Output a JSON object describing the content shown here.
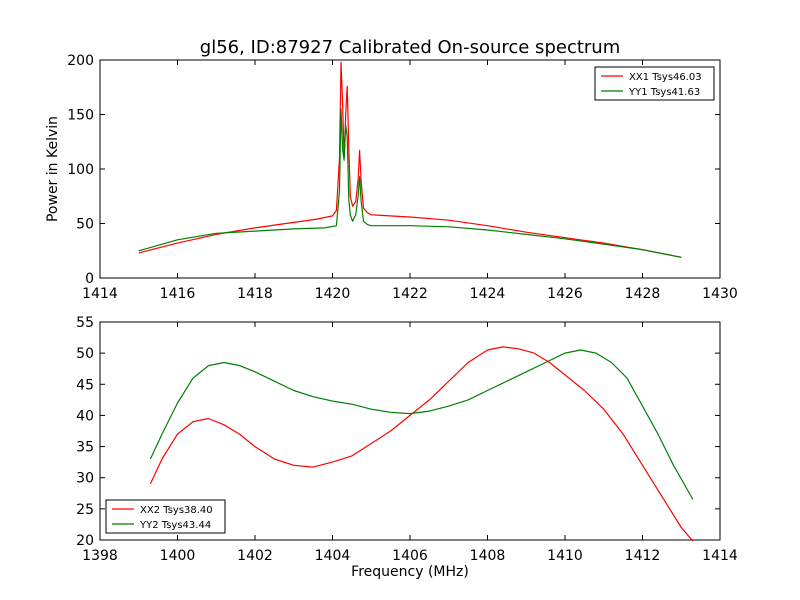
{
  "chart_data": [
    {
      "type": "line",
      "title": "gl56, ID:87927 Calibrated On-source spectrum",
      "xlabel": "",
      "ylabel": "Power in Kelvin",
      "xlim": [
        1414,
        1430
      ],
      "ylim": [
        0,
        200
      ],
      "xticks": [
        "1414",
        "1416",
        "1418",
        "1420",
        "1422",
        "1424",
        "1426",
        "1428",
        "1430"
      ],
      "yticks": [
        "0",
        "50",
        "100",
        "150",
        "200"
      ],
      "legend_position": "top-right",
      "series": [
        {
          "name": "XX1 Tsys46.03",
          "color": "#ff0000",
          "x": [
            1415.0,
            1416.0,
            1417.0,
            1418.0,
            1419.0,
            1419.6,
            1420.0,
            1420.1,
            1420.18,
            1420.22,
            1420.26,
            1420.3,
            1420.34,
            1420.38,
            1420.42,
            1420.46,
            1420.52,
            1420.6,
            1420.66,
            1420.7,
            1420.74,
            1420.8,
            1420.9,
            1421.0,
            1422.0,
            1423.0,
            1424.0,
            1425.0,
            1426.0,
            1427.0,
            1428.0,
            1429.0
          ],
          "y": [
            23,
            32,
            40,
            46,
            51,
            54,
            57,
            62,
            110,
            198,
            160,
            110,
            150,
            176,
            120,
            75,
            66,
            70,
            90,
            117,
            88,
            64,
            60,
            58,
            56,
            53,
            48,
            42,
            37,
            32,
            26,
            19
          ]
        },
        {
          "name": "YY1 Tsys41.63",
          "color": "#008000",
          "x": [
            1415.0,
            1416.0,
            1417.0,
            1418.0,
            1419.0,
            1419.8,
            1420.1,
            1420.18,
            1420.22,
            1420.26,
            1420.3,
            1420.34,
            1420.38,
            1420.42,
            1420.46,
            1420.52,
            1420.6,
            1420.66,
            1420.7,
            1420.74,
            1420.8,
            1420.9,
            1421.0,
            1422.0,
            1423.0,
            1424.0,
            1425.0,
            1426.0,
            1427.0,
            1428.0,
            1429.0
          ],
          "y": [
            25,
            35,
            41,
            43,
            45,
            46,
            48,
            80,
            155,
            118,
            108,
            140,
            130,
            72,
            58,
            52,
            58,
            75,
            93,
            70,
            52,
            49,
            48,
            48,
            47,
            44,
            40,
            36,
            31,
            26,
            19
          ]
        }
      ]
    },
    {
      "type": "line",
      "title": "",
      "xlabel": "Frequency (MHz)",
      "ylabel": "",
      "xlim": [
        1398,
        1414
      ],
      "ylim": [
        20,
        55
      ],
      "xticks": [
        "1398",
        "1400",
        "1402",
        "1404",
        "1406",
        "1408",
        "1410",
        "1412",
        "1414"
      ],
      "yticks": [
        "20",
        "25",
        "30",
        "35",
        "40",
        "45",
        "50",
        "55"
      ],
      "legend_position": "bottom-left",
      "series": [
        {
          "name": "XX2 Tsys38.40",
          "color": "#ff0000",
          "x": [
            1399.3,
            1399.6,
            1400.0,
            1400.4,
            1400.8,
            1401.2,
            1401.6,
            1402.0,
            1402.5,
            1403.0,
            1403.5,
            1404.0,
            1404.5,
            1405.0,
            1405.5,
            1406.0,
            1406.5,
            1407.0,
            1407.5,
            1408.0,
            1408.4,
            1408.8,
            1409.2,
            1409.6,
            1410.0,
            1410.5,
            1411.0,
            1411.5,
            1412.0,
            1412.5,
            1413.0,
            1413.3
          ],
          "y": [
            29,
            33,
            37,
            39,
            39.5,
            38.5,
            37,
            35,
            33,
            32,
            31.7,
            32.5,
            33.5,
            35.5,
            37.5,
            40,
            42.5,
            45.5,
            48.5,
            50.5,
            51,
            50.7,
            50,
            48.5,
            46.5,
            44,
            41,
            37,
            32,
            27,
            22,
            19.8
          ]
        },
        {
          "name": "YY2 Tsys43.44",
          "color": "#008000",
          "x": [
            1399.3,
            1399.6,
            1400.0,
            1400.4,
            1400.8,
            1401.2,
            1401.6,
            1402.0,
            1402.5,
            1403.0,
            1403.5,
            1404.0,
            1404.5,
            1405.0,
            1405.5,
            1406.0,
            1406.5,
            1407.0,
            1407.5,
            1408.0,
            1408.5,
            1409.0,
            1409.5,
            1410.0,
            1410.4,
            1410.8,
            1411.2,
            1411.6,
            1412.0,
            1412.4,
            1412.8,
            1413.3
          ],
          "y": [
            33,
            37,
            42,
            46,
            48,
            48.5,
            48,
            47,
            45.5,
            44,
            43,
            42.3,
            41.8,
            41,
            40.5,
            40.3,
            40.7,
            41.5,
            42.5,
            44,
            45.5,
            47,
            48.5,
            50,
            50.5,
            50,
            48.5,
            46,
            41.5,
            37,
            32,
            26.5
          ]
        }
      ]
    }
  ]
}
